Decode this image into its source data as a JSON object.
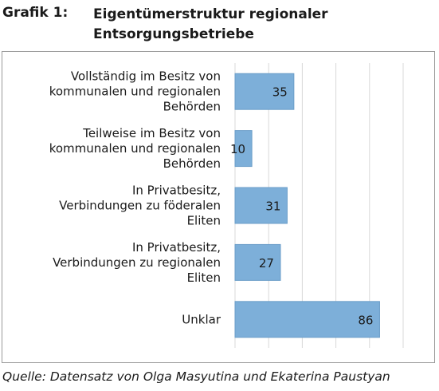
{
  "header": {
    "figure_label": "Grafik 1:",
    "title_line1": "Eigentümerstruktur regionaler",
    "title_line2": "Entsorgungsbetriebe"
  },
  "chart_data": {
    "type": "bar",
    "orientation": "horizontal",
    "categories": [
      [
        "Vollständig im Besitz von",
        "kommunalen und regionalen",
        "Behörden"
      ],
      [
        "Teilweise im Besitz von",
        "kommunalen und regionalen",
        "Behörden"
      ],
      [
        "In Privatbesitz,",
        "Verbindungen zu föderalen",
        "Eliten"
      ],
      [
        "In Privatbesitz,",
        "Verbindungen zu regionalen",
        "Eliten"
      ],
      [
        "Unklar"
      ]
    ],
    "values": [
      35,
      10,
      31,
      27,
      86
    ],
    "data_labels": [
      "35",
      "10",
      "31",
      "27",
      "86"
    ],
    "xlim": [
      0,
      100
    ],
    "grid": true,
    "bar_color": "#7dafd9",
    "bar_edge_color": "#6a9dc8",
    "grid_color": "#d9d9d9"
  },
  "source": "Quelle: Datensatz von Olga Masyutina und Ekaterina Paustyan"
}
